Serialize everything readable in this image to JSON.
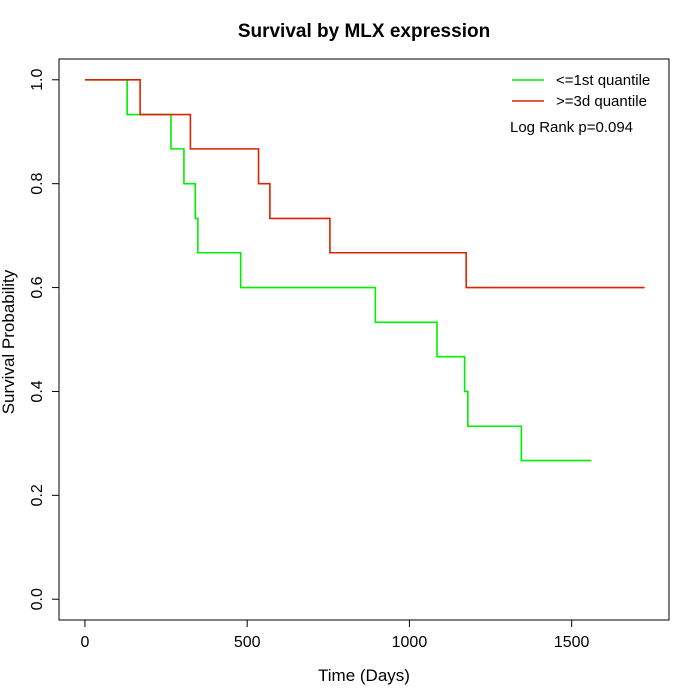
{
  "chart_data": {
    "type": "line",
    "title": "Survival by MLX expression",
    "xlabel": "Time (Days)",
    "ylabel": "Survival Probability",
    "xlim": [
      -80,
      1800
    ],
    "ylim": [
      -0.04,
      1.04
    ],
    "xticks": [
      0,
      500,
      1000,
      1500
    ],
    "yticks": [
      0.0,
      0.2,
      0.4,
      0.6,
      0.8,
      1.0
    ],
    "xtick_labels": [
      "0",
      "500",
      "1000",
      "1500"
    ],
    "ytick_labels": [
      "0.0",
      "0.2",
      "0.4",
      "0.6",
      "0.8",
      "1.0"
    ],
    "grid": false,
    "legend_position": "top-right",
    "annotation": "Log Rank p=0.094",
    "series": [
      {
        "name": "<=1st quantile",
        "color": "#00ee00",
        "step": true,
        "x": [
          0,
          130,
          265,
          305,
          340,
          348,
          480,
          895,
          1085,
          1170,
          1180,
          1345,
          1560
        ],
        "y": [
          1.0,
          0.933,
          0.867,
          0.8,
          0.733,
          0.667,
          0.6,
          0.533,
          0.467,
          0.4,
          0.333,
          0.267,
          0.267
        ]
      },
      {
        "name": ">=3d quantile",
        "color": "#dd2200",
        "step": true,
        "x": [
          0,
          170,
          325,
          535,
          570,
          755,
          1175,
          1725
        ],
        "y": [
          1.0,
          0.933,
          0.867,
          0.8,
          0.733,
          0.667,
          0.6,
          0.6
        ]
      }
    ]
  }
}
